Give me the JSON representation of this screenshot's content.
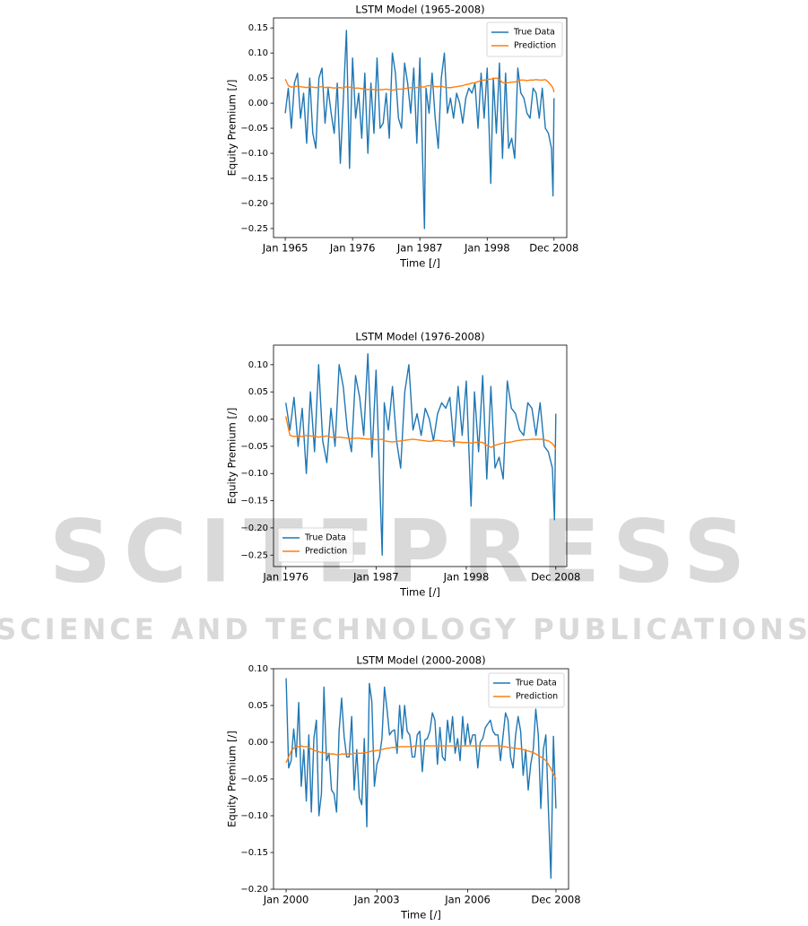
{
  "watermark": {
    "title": "SCITEPRESS",
    "subtitle": "SCIENCE AND TECHNOLOGY PUBLICATIONS"
  },
  "chart_data": [
    {
      "type": "line",
      "title": "LSTM Model (1965-2008)",
      "x_label": "Time [/]",
      "y_label": "Equity Premium [/]",
      "legend": "upper right",
      "xlim": [
        "1963-02",
        "2011-01"
      ],
      "ylim": [
        -0.268,
        0.17
      ],
      "xticks": [
        {
          "value": "1965-01",
          "label": "Jan 1965"
        },
        {
          "value": "1976-01",
          "label": "Jan 1976"
        },
        {
          "value": "1987-01",
          "label": "Jan 1987"
        },
        {
          "value": "1998-01",
          "label": "Jan 1998"
        },
        {
          "value": "2008-12",
          "label": "Dec 2008"
        }
      ],
      "yticks": [
        {
          "value": -0.25,
          "label": "−0.25"
        },
        {
          "value": -0.2,
          "label": "−0.20"
        },
        {
          "value": -0.15,
          "label": "−0.15"
        },
        {
          "value": -0.1,
          "label": "−0.10"
        },
        {
          "value": -0.05,
          "label": "−0.05"
        },
        {
          "value": 0,
          "label": "0.00"
        },
        0.05,
        {
          "value": 0.1,
          "label": "0.10"
        },
        0.15
      ],
      "x": [
        "1965-01",
        "1965-07",
        "1966-01",
        "1966-07",
        "1967-01",
        "1967-07",
        "1968-01",
        "1968-07",
        "1969-01",
        "1969-07",
        "1970-01",
        "1970-07",
        "1971-01",
        "1971-07",
        "1972-01",
        "1972-07",
        "1973-01",
        "1973-07",
        "1974-01",
        "1974-07",
        "1975-01",
        "1975-07",
        "1976-01",
        "1976-07",
        "1977-01",
        "1977-07",
        "1978-01",
        "1978-07",
        "1979-01",
        "1979-07",
        "1980-01",
        "1980-07",
        "1981-01",
        "1981-07",
        "1982-01",
        "1982-07",
        "1983-01",
        "1983-07",
        "1984-01",
        "1984-07",
        "1985-01",
        "1985-07",
        "1986-01",
        "1986-07",
        "1987-01",
        "1987-10",
        "1988-01",
        "1988-07",
        "1989-01",
        "1989-07",
        "1990-01",
        "1990-07",
        "1991-01",
        "1991-07",
        "1992-01",
        "1992-07",
        "1993-01",
        "1993-07",
        "1994-01",
        "1994-07",
        "1995-01",
        "1995-07",
        "1996-01",
        "1996-07",
        "1997-01",
        "1997-07",
        "1998-01",
        "1998-08",
        "1999-01",
        "1999-07",
        "2000-01",
        "2000-07",
        "2001-01",
        "2001-07",
        "2002-01",
        "2002-07",
        "2003-01",
        "2003-07",
        "2004-01",
        "2004-07",
        "2005-01",
        "2005-07",
        "2006-01",
        "2006-07",
        "2007-01",
        "2007-07",
        "2008-01",
        "2008-07",
        "2008-10",
        "2008-12"
      ],
      "series": [
        {
          "name": "True Data",
          "color": "#1f77b4",
          "values": [
            -0.02,
            0.03,
            -0.05,
            0.04,
            0.06,
            -0.03,
            0.02,
            -0.08,
            0.05,
            -0.06,
            -0.09,
            0.05,
            0.07,
            -0.04,
            0.03,
            -0.02,
            -0.06,
            0.04,
            -0.12,
            0.01,
            0.145,
            -0.13,
            0.09,
            -0.03,
            0.02,
            -0.07,
            0.06,
            -0.1,
            0.04,
            -0.06,
            0.09,
            -0.05,
            -0.04,
            0.02,
            -0.07,
            0.1,
            0.06,
            -0.03,
            -0.05,
            0.08,
            0.04,
            -0.02,
            0.07,
            -0.08,
            0.09,
            -0.25,
            0.03,
            -0.02,
            0.06,
            -0.03,
            -0.09,
            0.05,
            0.1,
            -0.02,
            0.01,
            -0.03,
            0.02,
            0.0,
            -0.04,
            0.01,
            0.03,
            0.02,
            0.04,
            -0.05,
            0.06,
            -0.03,
            0.07,
            -0.16,
            0.05,
            -0.06,
            0.08,
            -0.11,
            0.06,
            -0.09,
            -0.07,
            -0.11,
            0.07,
            0.02,
            0.01,
            -0.02,
            -0.03,
            0.03,
            0.02,
            -0.03,
            0.03,
            -0.05,
            -0.06,
            -0.09,
            -0.185,
            0.01
          ]
        },
        {
          "name": "Prediction",
          "color": "#ff7f0e",
          "values": [
            0.048,
            0.035,
            0.032,
            0.033,
            0.034,
            0.033,
            0.032,
            0.031,
            0.033,
            0.032,
            0.031,
            0.032,
            0.033,
            0.031,
            0.032,
            0.031,
            0.03,
            0.031,
            0.031,
            0.03,
            0.033,
            0.032,
            0.031,
            0.03,
            0.03,
            0.029,
            0.028,
            0.027,
            0.028,
            0.027,
            0.026,
            0.027,
            0.027,
            0.028,
            0.027,
            0.026,
            0.027,
            0.028,
            0.028,
            0.029,
            0.03,
            0.031,
            0.031,
            0.031,
            0.033,
            0.032,
            0.034,
            0.035,
            0.035,
            0.033,
            0.033,
            0.034,
            0.032,
            0.031,
            0.031,
            0.032,
            0.033,
            0.034,
            0.035,
            0.037,
            0.038,
            0.04,
            0.041,
            0.043,
            0.045,
            0.046,
            0.047,
            0.048,
            0.049,
            0.05,
            0.047,
            0.041,
            0.04,
            0.041,
            0.042,
            0.042,
            0.045,
            0.046,
            0.046,
            0.045,
            0.046,
            0.046,
            0.047,
            0.046,
            0.046,
            0.047,
            0.042,
            0.035,
            0.03,
            0.022
          ]
        }
      ]
    },
    {
      "type": "line",
      "title": "LSTM Model (1976-2008)",
      "x_label": "Time [/]",
      "y_label": "Equity Premium [/]",
      "legend": "lower left",
      "xlim": [
        "1974-07",
        "2010-04"
      ],
      "ylim": [
        -0.271,
        0.136
      ],
      "xticks": [
        {
          "value": "1976-01",
          "label": "Jan 1976"
        },
        {
          "value": "1987-01",
          "label": "Jan 1987"
        },
        {
          "value": "1998-01",
          "label": "Jan 1998"
        },
        {
          "value": "2008-12",
          "label": "Dec 2008"
        }
      ],
      "yticks": [
        {
          "value": -0.25,
          "label": "−0.25"
        },
        {
          "value": -0.2,
          "label": "−0.20"
        },
        {
          "value": -0.15,
          "label": "−0.15"
        },
        {
          "value": -0.1,
          "label": "−0.10"
        },
        {
          "value": -0.05,
          "label": "−0.05"
        },
        {
          "value": 0,
          "label": "0.00"
        },
        0.05,
        {
          "value": 0.1,
          "label": "0.10"
        }
      ],
      "x": [
        "1976-01",
        "1976-07",
        "1977-01",
        "1977-07",
        "1978-01",
        "1978-07",
        "1979-01",
        "1979-07",
        "1980-01",
        "1980-07",
        "1981-01",
        "1981-07",
        "1982-01",
        "1982-07",
        "1983-01",
        "1983-07",
        "1984-01",
        "1984-07",
        "1985-01",
        "1985-07",
        "1986-01",
        "1986-07",
        "1987-01",
        "1987-10",
        "1988-01",
        "1988-07",
        "1989-01",
        "1989-07",
        "1990-01",
        "1990-07",
        "1991-01",
        "1991-07",
        "1992-01",
        "1992-07",
        "1993-01",
        "1993-07",
        "1994-01",
        "1994-07",
        "1995-01",
        "1995-07",
        "1996-01",
        "1996-07",
        "1997-01",
        "1997-07",
        "1998-01",
        "1998-08",
        "1999-01",
        "1999-07",
        "2000-01",
        "2000-07",
        "2001-01",
        "2001-07",
        "2002-01",
        "2002-07",
        "2003-01",
        "2003-07",
        "2004-01",
        "2004-07",
        "2005-01",
        "2005-07",
        "2006-01",
        "2006-07",
        "2007-01",
        "2007-07",
        "2008-01",
        "2008-07",
        "2008-10",
        "2008-12"
      ],
      "series": [
        {
          "name": "True Data",
          "color": "#1f77b4",
          "values": [
            0.03,
            -0.02,
            0.04,
            -0.05,
            0.02,
            -0.1,
            0.05,
            -0.06,
            0.1,
            -0.04,
            -0.08,
            0.02,
            -0.05,
            0.1,
            0.06,
            -0.02,
            -0.06,
            0.08,
            0.04,
            -0.03,
            0.12,
            -0.07,
            0.09,
            -0.25,
            0.03,
            -0.02,
            0.06,
            -0.04,
            -0.09,
            0.05,
            0.1,
            -0.02,
            0.01,
            -0.03,
            0.02,
            0.0,
            -0.04,
            0.01,
            0.03,
            0.02,
            0.04,
            -0.05,
            0.06,
            -0.03,
            0.07,
            -0.16,
            0.05,
            -0.06,
            0.08,
            -0.11,
            0.06,
            -0.09,
            -0.07,
            -0.11,
            0.07,
            0.02,
            0.01,
            -0.02,
            -0.03,
            0.03,
            0.02,
            -0.03,
            0.03,
            -0.05,
            -0.06,
            -0.09,
            -0.185,
            0.01
          ]
        },
        {
          "name": "Prediction",
          "color": "#ff7f0e",
          "values": [
            0.005,
            -0.03,
            -0.032,
            -0.031,
            -0.032,
            -0.03,
            -0.031,
            -0.032,
            -0.033,
            -0.032,
            -0.031,
            -0.033,
            -0.034,
            -0.033,
            -0.034,
            -0.035,
            -0.036,
            -0.035,
            -0.035,
            -0.036,
            -0.037,
            -0.036,
            -0.038,
            -0.037,
            -0.04,
            -0.041,
            -0.042,
            -0.041,
            -0.04,
            -0.039,
            -0.038,
            -0.037,
            -0.038,
            -0.039,
            -0.04,
            -0.041,
            -0.04,
            -0.039,
            -0.04,
            -0.041,
            -0.04,
            -0.042,
            -0.042,
            -0.043,
            -0.043,
            -0.044,
            -0.043,
            -0.042,
            -0.043,
            -0.048,
            -0.052,
            -0.048,
            -0.046,
            -0.044,
            -0.043,
            -0.042,
            -0.04,
            -0.039,
            -0.038,
            -0.038,
            -0.037,
            -0.037,
            -0.037,
            -0.038,
            -0.04,
            -0.045,
            -0.05,
            -0.056
          ]
        }
      ]
    },
    {
      "type": "line",
      "title": "LSTM Model (2000-2008)",
      "x_label": "Time [/]",
      "y_label": "Equity Premium [/]",
      "legend": "upper right",
      "xlim": [
        "1999-08",
        "2009-05"
      ],
      "ylim": [
        -0.2,
        0.1
      ],
      "xticks": [
        {
          "value": "2000-01",
          "label": "Jan 2000"
        },
        {
          "value": "2003-01",
          "label": "Jan 2003"
        },
        {
          "value": "2006-01",
          "label": "Jan 2006"
        },
        {
          "value": "2008-12",
          "label": "Dec 2008"
        }
      ],
      "yticks": [
        {
          "value": -0.2,
          "label": "−0.20"
        },
        {
          "value": -0.15,
          "label": "−0.15"
        },
        {
          "value": -0.1,
          "label": "−0.10"
        },
        {
          "value": -0.05,
          "label": "−0.05"
        },
        {
          "value": 0,
          "label": "0.00"
        },
        0.05,
        {
          "value": 0.1,
          "label": "0.10"
        }
      ],
      "x": [
        "2000-01",
        "2000-02",
        "2000-03",
        "2000-04",
        "2000-05",
        "2000-06",
        "2000-07",
        "2000-08",
        "2000-09",
        "2000-10",
        "2000-11",
        "2000-12",
        "2001-01",
        "2001-02",
        "2001-03",
        "2001-04",
        "2001-05",
        "2001-06",
        "2001-07",
        "2001-08",
        "2001-09",
        "2001-10",
        "2001-11",
        "2001-12",
        "2002-01",
        "2002-02",
        "2002-03",
        "2002-04",
        "2002-05",
        "2002-06",
        "2002-07",
        "2002-08",
        "2002-09",
        "2002-10",
        "2002-11",
        "2002-12",
        "2003-01",
        "2003-02",
        "2003-03",
        "2003-04",
        "2003-05",
        "2003-06",
        "2003-07",
        "2003-08",
        "2003-09",
        "2003-10",
        "2003-11",
        "2003-12",
        "2004-01",
        "2004-02",
        "2004-03",
        "2004-04",
        "2004-05",
        "2004-06",
        "2004-07",
        "2004-08",
        "2004-09",
        "2004-10",
        "2004-11",
        "2004-12",
        "2005-01",
        "2005-02",
        "2005-03",
        "2005-04",
        "2005-05",
        "2005-06",
        "2005-07",
        "2005-08",
        "2005-09",
        "2005-10",
        "2005-11",
        "2005-12",
        "2006-01",
        "2006-02",
        "2006-03",
        "2006-04",
        "2006-05",
        "2006-06",
        "2006-07",
        "2006-08",
        "2006-09",
        "2006-10",
        "2006-11",
        "2006-12",
        "2007-01",
        "2007-02",
        "2007-03",
        "2007-04",
        "2007-05",
        "2007-06",
        "2007-07",
        "2007-08",
        "2007-09",
        "2007-10",
        "2007-11",
        "2007-12",
        "2008-01",
        "2008-02",
        "2008-03",
        "2008-04",
        "2008-05",
        "2008-06",
        "2008-07",
        "2008-08",
        "2008-09",
        "2008-10",
        "2008-11",
        "2008-12"
      ],
      "series": [
        {
          "name": "True Data",
          "color": "#1f77b4",
          "values": [
            0.087,
            -0.035,
            -0.025,
            0.018,
            -0.02,
            0.054,
            -0.06,
            -0.01,
            -0.08,
            0.01,
            -0.095,
            0.005,
            0.03,
            -0.1,
            -0.07,
            0.075,
            -0.025,
            -0.015,
            -0.065,
            -0.07,
            -0.095,
            0.015,
            0.06,
            0.008,
            -0.02,
            -0.02,
            0.035,
            -0.065,
            -0.01,
            -0.075,
            -0.085,
            0.005,
            -0.115,
            0.08,
            0.055,
            -0.06,
            -0.03,
            -0.02,
            0.005,
            0.075,
            0.045,
            0.01,
            0.015,
            0.017,
            -0.015,
            0.05,
            0.005,
            0.05,
            0.015,
            0.01,
            -0.02,
            -0.02,
            0.01,
            0.015,
            -0.04,
            0.003,
            0.005,
            0.015,
            0.04,
            0.03,
            -0.03,
            0.02,
            -0.02,
            -0.025,
            0.03,
            0.0,
            0.035,
            -0.015,
            0.005,
            -0.025,
            0.035,
            -0.005,
            0.025,
            -0.003,
            0.01,
            0.01,
            -0.035,
            0.0,
            0.005,
            0.02,
            0.025,
            0.03,
            0.015,
            0.01,
            0.01,
            -0.025,
            0.008,
            0.04,
            0.03,
            -0.02,
            -0.035,
            0.01,
            0.035,
            0.015,
            -0.045,
            -0.01,
            -0.065,
            -0.03,
            -0.01,
            0.045,
            0.01,
            -0.09,
            -0.01,
            0.01,
            -0.09,
            -0.185,
            0.008,
            -0.09
          ]
        },
        {
          "name": "Prediction",
          "color": "#ff7f0e",
          "values": [
            -0.028,
            -0.02,
            -0.012,
            -0.008,
            -0.006,
            -0.006,
            -0.005,
            -0.006,
            -0.006,
            -0.007,
            -0.009,
            -0.011,
            -0.012,
            -0.013,
            -0.014,
            -0.014,
            -0.015,
            -0.016,
            -0.016,
            -0.016,
            -0.017,
            -0.017,
            -0.016,
            -0.016,
            -0.016,
            -0.016,
            -0.016,
            -0.015,
            -0.015,
            -0.015,
            -0.015,
            -0.014,
            -0.014,
            -0.013,
            -0.012,
            -0.012,
            -0.011,
            -0.011,
            -0.01,
            -0.009,
            -0.008,
            -0.008,
            -0.007,
            -0.007,
            -0.007,
            -0.006,
            -0.006,
            -0.006,
            -0.006,
            -0.006,
            -0.006,
            -0.005,
            -0.005,
            -0.005,
            -0.005,
            -0.005,
            -0.005,
            -0.005,
            -0.005,
            -0.005,
            -0.005,
            -0.005,
            -0.005,
            -0.005,
            -0.005,
            -0.005,
            -0.005,
            -0.005,
            -0.005,
            -0.005,
            -0.005,
            -0.005,
            -0.005,
            -0.005,
            -0.005,
            -0.005,
            -0.005,
            -0.005,
            -0.005,
            -0.005,
            -0.005,
            -0.005,
            -0.005,
            -0.005,
            -0.005,
            -0.005,
            -0.006,
            -0.006,
            -0.007,
            -0.007,
            -0.008,
            -0.008,
            -0.009,
            -0.009,
            -0.01,
            -0.011,
            -0.012,
            -0.013,
            -0.014,
            -0.016,
            -0.018,
            -0.02,
            -0.022,
            -0.025,
            -0.03,
            -0.036,
            -0.043,
            -0.05
          ]
        }
      ]
    }
  ]
}
